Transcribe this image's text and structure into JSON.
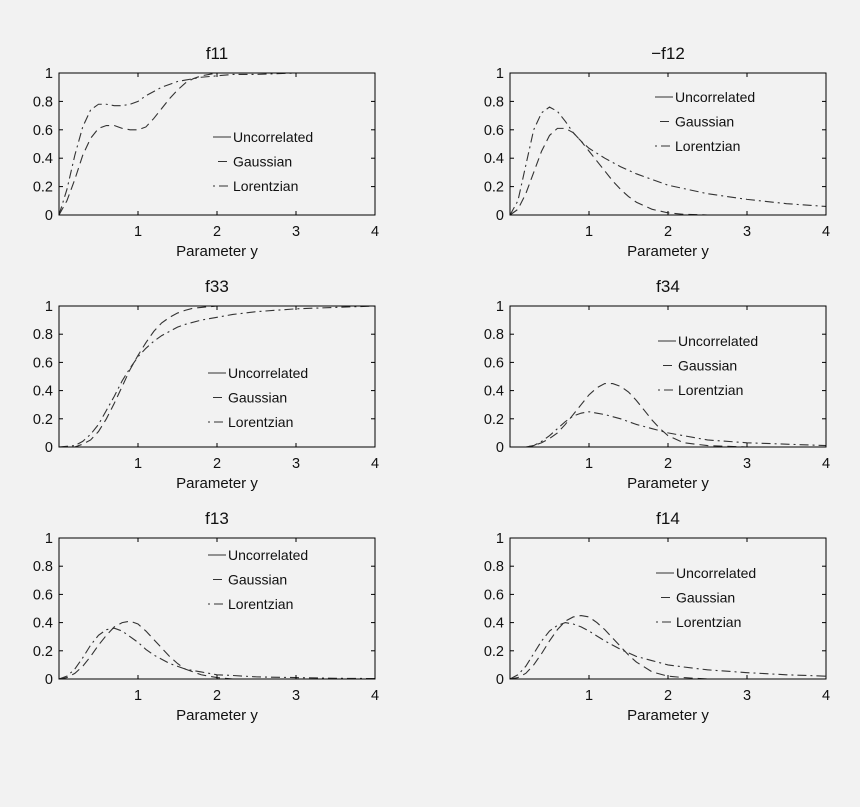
{
  "chart_data": [
    {
      "type": "line",
      "title": "f11",
      "xlabel": "Parameter y",
      "ylabel": "",
      "xlim": [
        0,
        4
      ],
      "ylim": [
        0,
        1
      ],
      "xticks": [
        "1",
        "2",
        "3",
        "4"
      ],
      "yticks": [
        "0",
        "0.2",
        "0.4",
        "0.6",
        "0.8",
        "1"
      ],
      "legend_position": "center-right",
      "series": [
        {
          "name": "Uncorrelated",
          "style": "solid",
          "x": [
            0,
            4
          ],
          "y": [
            1,
            1
          ]
        },
        {
          "name": "Gaussian",
          "style": "dashed",
          "x": [
            0,
            0.1,
            0.2,
            0.3,
            0.4,
            0.5,
            0.6,
            0.7,
            0.8,
            0.9,
            1.0,
            1.1,
            1.2,
            1.3,
            1.4,
            1.5,
            1.6,
            1.7,
            1.8,
            1.9,
            2.0,
            2.2,
            2.5,
            3.0,
            4.0
          ],
          "y": [
            0,
            0.1,
            0.25,
            0.42,
            0.54,
            0.61,
            0.63,
            0.63,
            0.61,
            0.6,
            0.6,
            0.62,
            0.68,
            0.75,
            0.82,
            0.88,
            0.93,
            0.96,
            0.98,
            0.99,
            1.0,
            1.0,
            1.0,
            1.0,
            1.0
          ]
        },
        {
          "name": "Lorentzian",
          "style": "dashdot",
          "x": [
            0,
            0.1,
            0.2,
            0.3,
            0.4,
            0.5,
            0.6,
            0.7,
            0.8,
            0.9,
            1.0,
            1.1,
            1.2,
            1.3,
            1.4,
            1.5,
            1.6,
            1.8,
            2.0,
            2.2,
            2.5,
            3.0,
            3.5,
            4.0
          ],
          "y": [
            0,
            0.18,
            0.42,
            0.62,
            0.74,
            0.78,
            0.78,
            0.77,
            0.77,
            0.78,
            0.8,
            0.84,
            0.87,
            0.9,
            0.92,
            0.94,
            0.95,
            0.97,
            0.98,
            0.99,
            0.99,
            1.0,
            1.0,
            1.0
          ]
        }
      ]
    },
    {
      "type": "line",
      "title": "−f12",
      "xlabel": "Parameter y",
      "ylabel": "",
      "xlim": [
        0,
        4
      ],
      "ylim": [
        0,
        1
      ],
      "xticks": [
        "1",
        "2",
        "3",
        "4"
      ],
      "yticks": [
        "0",
        "0.2",
        "0.4",
        "0.6",
        "0.8",
        "1"
      ],
      "legend_position": "top-right",
      "series": [
        {
          "name": "Uncorrelated",
          "style": "solid",
          "x": [
            0,
            4
          ],
          "y": [
            0,
            0
          ]
        },
        {
          "name": "Gaussian",
          "style": "dashed",
          "x": [
            0,
            0.1,
            0.2,
            0.3,
            0.4,
            0.5,
            0.6,
            0.7,
            0.8,
            0.9,
            1.0,
            1.1,
            1.2,
            1.3,
            1.4,
            1.5,
            1.6,
            1.8,
            2.0,
            2.2,
            2.5,
            3.0,
            4.0
          ],
          "y": [
            0,
            0.04,
            0.15,
            0.3,
            0.45,
            0.56,
            0.61,
            0.61,
            0.58,
            0.52,
            0.45,
            0.38,
            0.31,
            0.24,
            0.18,
            0.13,
            0.09,
            0.04,
            0.015,
            0.005,
            0,
            0,
            0
          ]
        },
        {
          "name": "Lorentzian",
          "style": "dashdot",
          "x": [
            0,
            0.1,
            0.2,
            0.3,
            0.4,
            0.5,
            0.6,
            0.7,
            0.8,
            0.9,
            1.0,
            1.2,
            1.4,
            1.6,
            1.8,
            2.0,
            2.5,
            3.0,
            3.5,
            4.0
          ],
          "y": [
            0,
            0.1,
            0.35,
            0.6,
            0.72,
            0.76,
            0.73,
            0.66,
            0.58,
            0.52,
            0.47,
            0.4,
            0.34,
            0.29,
            0.25,
            0.21,
            0.15,
            0.11,
            0.08,
            0.06
          ]
        }
      ]
    },
    {
      "type": "line",
      "title": "f33",
      "xlabel": "Parameter y",
      "ylabel": "",
      "xlim": [
        0,
        4
      ],
      "ylim": [
        0,
        1
      ],
      "xticks": [
        "1",
        "2",
        "3",
        "4"
      ],
      "yticks": [
        "0",
        "0.2",
        "0.4",
        "0.6",
        "0.8",
        "1"
      ],
      "legend_position": "center-right",
      "series": [
        {
          "name": "Uncorrelated",
          "style": "solid",
          "x": [
            0,
            4
          ],
          "y": [
            1,
            1
          ]
        },
        {
          "name": "Gaussian",
          "style": "dashed",
          "x": [
            0,
            0.2,
            0.3,
            0.4,
            0.5,
            0.6,
            0.7,
            0.8,
            0.9,
            1.0,
            1.1,
            1.2,
            1.3,
            1.4,
            1.5,
            1.6,
            1.7,
            1.8,
            2.0,
            2.2,
            2.5,
            3.0,
            4.0
          ],
          "y": [
            0,
            0,
            0.02,
            0.05,
            0.11,
            0.2,
            0.31,
            0.43,
            0.55,
            0.65,
            0.74,
            0.82,
            0.88,
            0.92,
            0.95,
            0.97,
            0.985,
            0.99,
            1.0,
            1.0,
            1.0,
            1.0,
            1.0
          ]
        },
        {
          "name": "Lorentzian",
          "style": "dashdot",
          "x": [
            0,
            0.2,
            0.3,
            0.4,
            0.5,
            0.6,
            0.7,
            0.8,
            0.9,
            1.0,
            1.1,
            1.2,
            1.3,
            1.4,
            1.5,
            1.6,
            1.8,
            2.0,
            2.2,
            2.5,
            3.0,
            3.5,
            4.0
          ],
          "y": [
            0,
            0.01,
            0.04,
            0.09,
            0.16,
            0.26,
            0.36,
            0.47,
            0.56,
            0.64,
            0.7,
            0.75,
            0.79,
            0.82,
            0.85,
            0.87,
            0.9,
            0.92,
            0.94,
            0.96,
            0.98,
            0.99,
            1.0
          ]
        }
      ]
    },
    {
      "type": "line",
      "title": "f34",
      "xlabel": "Parameter y",
      "ylabel": "",
      "xlim": [
        0,
        4
      ],
      "ylim": [
        0,
        1
      ],
      "xticks": [
        "1",
        "2",
        "3",
        "4"
      ],
      "yticks": [
        "0",
        "0.2",
        "0.4",
        "0.6",
        "0.8",
        "1"
      ],
      "legend_position": "top-right",
      "series": [
        {
          "name": "Uncorrelated",
          "style": "solid",
          "x": [
            0,
            4
          ],
          "y": [
            0,
            0
          ]
        },
        {
          "name": "Gaussian",
          "style": "dashed",
          "x": [
            0,
            0.2,
            0.3,
            0.4,
            0.5,
            0.6,
            0.7,
            0.8,
            0.9,
            1.0,
            1.1,
            1.2,
            1.3,
            1.4,
            1.5,
            1.6,
            1.7,
            1.8,
            1.9,
            2.0,
            2.2,
            2.5,
            3.0,
            4.0
          ],
          "y": [
            0,
            0,
            0.01,
            0.03,
            0.06,
            0.1,
            0.16,
            0.23,
            0.3,
            0.37,
            0.42,
            0.45,
            0.45,
            0.43,
            0.39,
            0.33,
            0.26,
            0.19,
            0.13,
            0.08,
            0.03,
            0.01,
            0,
            0
          ]
        },
        {
          "name": "Lorentzian",
          "style": "dashdot",
          "x": [
            0,
            0.2,
            0.3,
            0.4,
            0.5,
            0.6,
            0.7,
            0.8,
            0.9,
            1.0,
            1.1,
            1.2,
            1.4,
            1.6,
            1.8,
            2.0,
            2.2,
            2.5,
            3.0,
            3.5,
            4.0
          ],
          "y": [
            0,
            0,
            0.01,
            0.04,
            0.08,
            0.13,
            0.18,
            0.22,
            0.24,
            0.25,
            0.24,
            0.23,
            0.2,
            0.16,
            0.13,
            0.1,
            0.08,
            0.05,
            0.03,
            0.02,
            0.01
          ]
        }
      ]
    },
    {
      "type": "line",
      "title": "f13",
      "xlabel": "Parameter y",
      "ylabel": "",
      "xlim": [
        0,
        4
      ],
      "ylim": [
        0,
        1
      ],
      "xticks": [
        "1",
        "2",
        "3",
        "4"
      ],
      "yticks": [
        "0",
        "0.2",
        "0.4",
        "0.6",
        "0.8",
        "1"
      ],
      "legend_position": "top-right",
      "series": [
        {
          "name": "Uncorrelated",
          "style": "solid",
          "x": [
            0,
            4
          ],
          "y": [
            0,
            0
          ]
        },
        {
          "name": "Gaussian",
          "style": "dashed",
          "x": [
            0,
            0.1,
            0.2,
            0.3,
            0.4,
            0.5,
            0.6,
            0.7,
            0.8,
            0.9,
            1.0,
            1.1,
            1.2,
            1.3,
            1.4,
            1.5,
            1.6,
            1.8,
            2.0,
            2.2,
            2.5,
            3.0,
            4.0
          ],
          "y": [
            0,
            0.01,
            0.04,
            0.09,
            0.16,
            0.24,
            0.31,
            0.37,
            0.4,
            0.41,
            0.39,
            0.34,
            0.28,
            0.22,
            0.16,
            0.11,
            0.07,
            0.03,
            0.01,
            0,
            0,
            0,
            0
          ]
        },
        {
          "name": "Lorentzian",
          "style": "dashdot",
          "x": [
            0,
            0.1,
            0.2,
            0.3,
            0.4,
            0.5,
            0.6,
            0.7,
            0.8,
            0.9,
            1.0,
            1.1,
            1.2,
            1.4,
            1.6,
            1.8,
            2.0,
            2.2,
            2.5,
            3.0,
            3.5,
            4.0
          ],
          "y": [
            0,
            0.02,
            0.07,
            0.15,
            0.24,
            0.31,
            0.35,
            0.36,
            0.34,
            0.3,
            0.26,
            0.21,
            0.17,
            0.11,
            0.07,
            0.05,
            0.03,
            0.025,
            0.015,
            0.01,
            0.005,
            0.003
          ]
        }
      ]
    },
    {
      "type": "line",
      "title": "f14",
      "xlabel": "Parameter y",
      "ylabel": "",
      "xlim": [
        0,
        4
      ],
      "ylim": [
        0,
        1
      ],
      "xticks": [
        "1",
        "2",
        "3",
        "4"
      ],
      "yticks": [
        "0",
        "0.2",
        "0.4",
        "0.6",
        "0.8",
        "1"
      ],
      "legend_position": "top-right",
      "series": [
        {
          "name": "Uncorrelated",
          "style": "solid",
          "x": [
            0,
            4
          ],
          "y": [
            0,
            0
          ]
        },
        {
          "name": "Gaussian",
          "style": "dashed",
          "x": [
            0,
            0.1,
            0.2,
            0.3,
            0.4,
            0.5,
            0.6,
            0.7,
            0.8,
            0.9,
            1.0,
            1.1,
            1.2,
            1.3,
            1.4,
            1.5,
            1.6,
            1.8,
            2.0,
            2.2,
            2.5,
            3.0,
            4.0
          ],
          "y": [
            0,
            0.01,
            0.04,
            0.1,
            0.18,
            0.27,
            0.35,
            0.41,
            0.44,
            0.45,
            0.44,
            0.4,
            0.35,
            0.29,
            0.23,
            0.17,
            0.12,
            0.05,
            0.02,
            0.01,
            0,
            0,
            0
          ]
        },
        {
          "name": "Lorentzian",
          "style": "dashdot",
          "x": [
            0,
            0.1,
            0.2,
            0.3,
            0.4,
            0.5,
            0.6,
            0.7,
            0.8,
            0.9,
            1.0,
            1.2,
            1.4,
            1.6,
            1.8,
            2.0,
            2.2,
            2.5,
            3.0,
            3.5,
            4.0
          ],
          "y": [
            0,
            0.03,
            0.09,
            0.18,
            0.27,
            0.34,
            0.38,
            0.4,
            0.39,
            0.37,
            0.34,
            0.27,
            0.21,
            0.16,
            0.13,
            0.1,
            0.085,
            0.065,
            0.045,
            0.03,
            0.02
          ]
        }
      ]
    }
  ]
}
